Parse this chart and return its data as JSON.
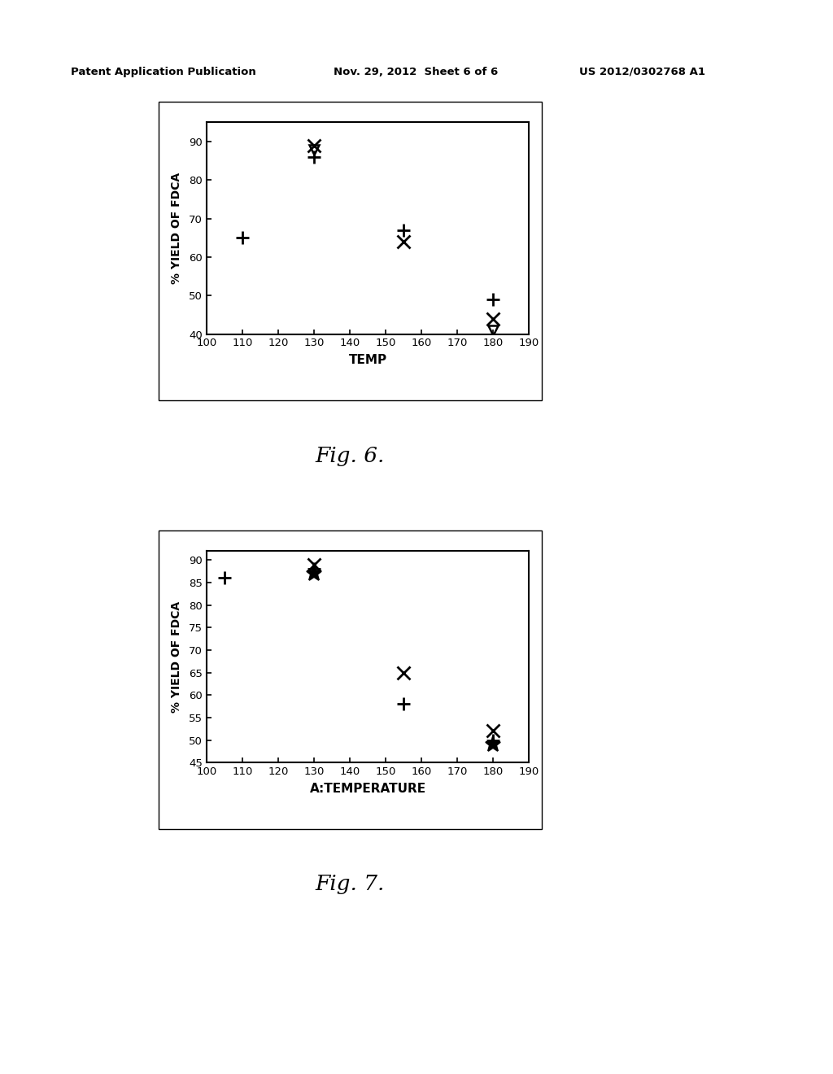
{
  "fig6": {
    "xlabel": "TEMP",
    "ylabel": "% YIELD OF FDCA",
    "xlim": [
      100,
      190
    ],
    "ylim": [
      40,
      95
    ],
    "yticks": [
      40,
      50,
      60,
      70,
      80,
      90
    ],
    "xticks": [
      100,
      110,
      120,
      130,
      140,
      150,
      160,
      170,
      180,
      190
    ],
    "plus_data": [
      [
        110,
        65
      ],
      [
        130,
        86
      ],
      [
        155,
        67
      ],
      [
        180,
        49
      ]
    ],
    "x_data": [
      [
        130,
        89
      ],
      [
        155,
        64
      ],
      [
        180,
        44
      ]
    ],
    "tri_down_data": [
      [
        130,
        88
      ],
      [
        180,
        41
      ]
    ]
  },
  "fig7": {
    "xlabel": "A:TEMPERATURE",
    "ylabel": "% YIELD OF FDCA",
    "xlim": [
      100,
      190
    ],
    "ylim": [
      45,
      92
    ],
    "yticks": [
      45,
      50,
      55,
      60,
      65,
      70,
      75,
      80,
      85,
      90
    ],
    "xticks": [
      100,
      110,
      120,
      130,
      140,
      150,
      160,
      170,
      180,
      190
    ],
    "plus_data": [
      [
        105,
        86
      ],
      [
        130,
        88
      ],
      [
        155,
        58
      ],
      [
        180,
        50
      ]
    ],
    "x_data": [
      [
        130,
        89
      ],
      [
        155,
        65
      ],
      [
        180,
        52
      ]
    ],
    "star_data": [
      [
        130,
        87
      ],
      [
        180,
        49
      ]
    ]
  },
  "fig6_label": "Fig. 6.",
  "fig7_label": "Fig. 7.",
  "header_left": "Patent Application Publication",
  "header_mid": "Nov. 29, 2012  Sheet 6 of 6",
  "header_right": "US 2012/0302768 A1",
  "bg_color": "#ffffff",
  "text_color": "#000000"
}
